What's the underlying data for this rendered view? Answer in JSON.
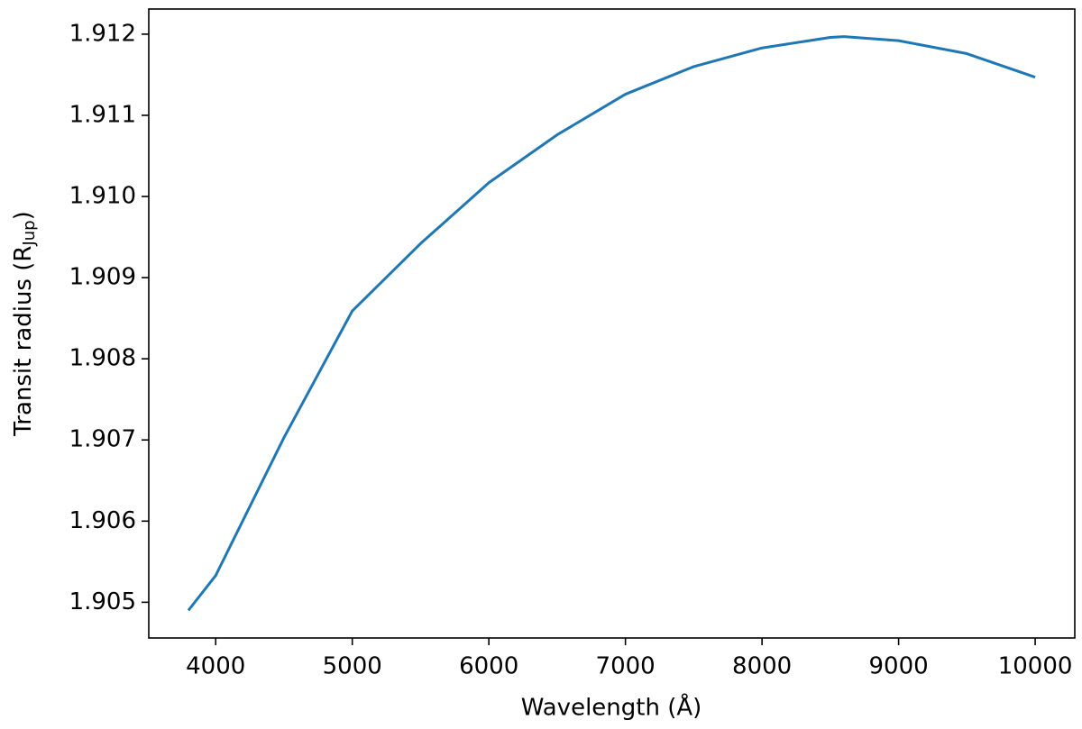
{
  "chart_data": {
    "type": "line",
    "xlabel": "Wavelength (Å)",
    "ylabel_parts": [
      "Transit radius (R",
      "Jup",
      ")"
    ],
    "x": [
      3800,
      4000,
      4500,
      5000,
      5500,
      6000,
      6500,
      7000,
      7500,
      8000,
      8500,
      8600,
      9000,
      9500,
      10000
    ],
    "series": [
      {
        "color": "#1f77b4",
        "values": [
          1.9049,
          1.90533,
          1.90703,
          1.90859,
          1.90942,
          1.91017,
          1.91076,
          1.91126,
          1.9116,
          1.91183,
          1.91196,
          1.91197,
          1.91192,
          1.91176,
          1.91147
        ]
      }
    ],
    "xlim": [
      3510,
      10290
    ],
    "ylim": [
      1.90456,
      1.91231
    ],
    "xticks": [
      4000,
      5000,
      6000,
      7000,
      8000,
      9000,
      10000
    ],
    "yticks": [
      1.905,
      1.906,
      1.907,
      1.908,
      1.909,
      {
        "value": 1.91,
        "label": "1.910"
      },
      1.911,
      1.912
    ],
    "grid": false
  }
}
